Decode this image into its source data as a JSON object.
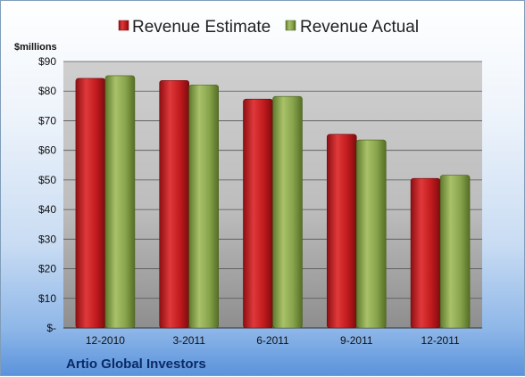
{
  "chart_data": {
    "type": "bar",
    "title": "",
    "unit_label": "$millions",
    "categories": [
      "12-2010",
      "3-2011",
      "6-2011",
      "9-2011",
      "12-2011"
    ],
    "series": [
      {
        "name": "Revenue Estimate",
        "color": "#c8191c",
        "values": [
          84.3,
          83.6,
          77.3,
          65.4,
          50.5
        ]
      },
      {
        "name": "Revenue Actual",
        "color": "#8aa64c",
        "values": [
          85.2,
          82.1,
          78.2,
          63.5,
          51.6
        ]
      }
    ],
    "ylim": [
      0,
      90
    ],
    "yticks": [
      0,
      10,
      20,
      30,
      40,
      50,
      60,
      70,
      80,
      90
    ],
    "ytick_labels": [
      "$-",
      "$10",
      "$20",
      "$30",
      "$40",
      "$50",
      "$60",
      "$70",
      "$80",
      "$90"
    ],
    "grid": true,
    "legend_position": "top-center",
    "footer_label": "Artio Global Investors"
  }
}
